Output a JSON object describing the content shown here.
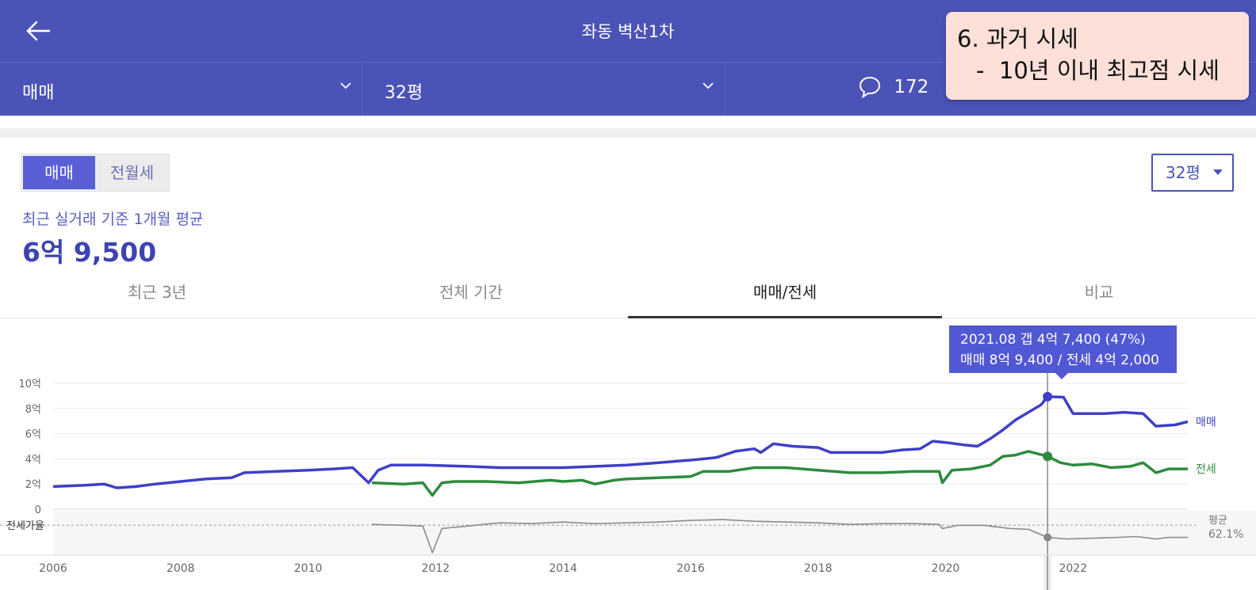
{
  "header": {
    "title": "좌동 벽산1차",
    "back_icon": "arrow-left-icon"
  },
  "filters": {
    "trade_type": "매매",
    "area": "32평",
    "comment_count": "172"
  },
  "callout": {
    "line1": "6. 과거 시세",
    "line2": "-  10년 이내 최고점 시세"
  },
  "segment": {
    "active": "매매",
    "inactive": "전월세"
  },
  "area_select": "32평",
  "summary": {
    "label": "최근 실거래 기준 1개월 평균",
    "value": "6억 9,500"
  },
  "tabs": [
    "최근 3년",
    "전체 기간",
    "매매/전세",
    "비교"
  ],
  "active_tab": 2,
  "tooltip": {
    "line1": "2021.08  갭 4억 7,400 (47%)",
    "line2": "매매 8억 9,400 / 전세 4억 2,000"
  },
  "ratio": {
    "label": "전세가율",
    "avg_label": "평균",
    "avg_value": "62.1%"
  },
  "colors": {
    "header_bg": "#4b53b7",
    "sale": "#3f3fc9",
    "jeonse": "#2e8b3e",
    "ratio": "#8c8c8c"
  },
  "chart_data": {
    "type": "line",
    "x_ticks": [
      "2006",
      "2008",
      "2010",
      "2012",
      "2014",
      "2016",
      "2018",
      "2020",
      "2022"
    ],
    "y_ticks": [
      "10억",
      "8억",
      "6억",
      "4억",
      "2억",
      "0"
    ],
    "ylim": [
      0,
      10
    ],
    "xlim": [
      2006.0,
      2023.8
    ],
    "unit": "억",
    "series": [
      {
        "name": "매매",
        "points": [
          [
            2006.0,
            1.8
          ],
          [
            2006.5,
            1.9
          ],
          [
            2006.8,
            2.0
          ],
          [
            2007.0,
            1.7
          ],
          [
            2007.3,
            1.8
          ],
          [
            2007.6,
            2.0
          ],
          [
            2008.0,
            2.2
          ],
          [
            2008.4,
            2.4
          ],
          [
            2008.8,
            2.5
          ],
          [
            2009.0,
            2.9
          ],
          [
            2009.5,
            3.0
          ],
          [
            2010.0,
            3.1
          ],
          [
            2010.4,
            3.2
          ],
          [
            2010.7,
            3.3
          ],
          [
            2010.95,
            2.1
          ],
          [
            2011.1,
            3.1
          ],
          [
            2011.3,
            3.5
          ],
          [
            2011.8,
            3.5
          ],
          [
            2012.5,
            3.4
          ],
          [
            2013.0,
            3.3
          ],
          [
            2013.5,
            3.3
          ],
          [
            2014.0,
            3.3
          ],
          [
            2014.5,
            3.4
          ],
          [
            2015.0,
            3.5
          ],
          [
            2015.5,
            3.7
          ],
          [
            2016.0,
            3.9
          ],
          [
            2016.4,
            4.1
          ],
          [
            2016.7,
            4.6
          ],
          [
            2017.0,
            4.8
          ],
          [
            2017.1,
            4.5
          ],
          [
            2017.3,
            5.2
          ],
          [
            2017.6,
            5.0
          ],
          [
            2018.0,
            4.9
          ],
          [
            2018.2,
            4.5
          ],
          [
            2018.6,
            4.5
          ],
          [
            2019.0,
            4.5
          ],
          [
            2019.3,
            4.7
          ],
          [
            2019.6,
            4.8
          ],
          [
            2019.8,
            5.4
          ],
          [
            2020.0,
            5.3
          ],
          [
            2020.3,
            5.1
          ],
          [
            2020.5,
            5.0
          ],
          [
            2020.7,
            5.6
          ],
          [
            2020.9,
            6.3
          ],
          [
            2021.1,
            7.1
          ],
          [
            2021.3,
            7.7
          ],
          [
            2021.5,
            8.3
          ],
          [
            2021.6,
            8.94
          ],
          [
            2021.85,
            8.9
          ],
          [
            2022.0,
            7.6
          ],
          [
            2022.5,
            7.6
          ],
          [
            2022.8,
            7.7
          ],
          [
            2023.1,
            7.6
          ],
          [
            2023.3,
            6.6
          ],
          [
            2023.6,
            6.7
          ],
          [
            2023.8,
            6.95
          ]
        ]
      },
      {
        "name": "전세",
        "points": [
          [
            2011.0,
            2.1
          ],
          [
            2011.5,
            2.0
          ],
          [
            2011.8,
            2.1
          ],
          [
            2011.95,
            1.1
          ],
          [
            2012.1,
            2.1
          ],
          [
            2012.3,
            2.2
          ],
          [
            2012.8,
            2.2
          ],
          [
            2013.3,
            2.1
          ],
          [
            2013.8,
            2.3
          ],
          [
            2014.0,
            2.2
          ],
          [
            2014.3,
            2.3
          ],
          [
            2014.5,
            2.0
          ],
          [
            2014.8,
            2.3
          ],
          [
            2015.0,
            2.4
          ],
          [
            2015.5,
            2.5
          ],
          [
            2016.0,
            2.6
          ],
          [
            2016.2,
            3.0
          ],
          [
            2016.6,
            3.0
          ],
          [
            2017.0,
            3.3
          ],
          [
            2017.5,
            3.3
          ],
          [
            2018.0,
            3.1
          ],
          [
            2018.5,
            2.9
          ],
          [
            2019.0,
            2.9
          ],
          [
            2019.5,
            3.0
          ],
          [
            2019.9,
            3.0
          ],
          [
            2019.95,
            2.1
          ],
          [
            2020.1,
            3.1
          ],
          [
            2020.4,
            3.2
          ],
          [
            2020.7,
            3.5
          ],
          [
            2020.9,
            4.2
          ],
          [
            2021.1,
            4.3
          ],
          [
            2021.3,
            4.6
          ],
          [
            2021.6,
            4.2
          ],
          [
            2021.8,
            3.7
          ],
          [
            2022.0,
            3.5
          ],
          [
            2022.3,
            3.6
          ],
          [
            2022.6,
            3.3
          ],
          [
            2022.9,
            3.4
          ],
          [
            2023.1,
            3.7
          ],
          [
            2023.3,
            2.9
          ],
          [
            2023.5,
            3.2
          ],
          [
            2023.8,
            3.2
          ]
        ]
      },
      {
        "name": "전세가율",
        "points": [
          [
            2011.0,
            63
          ],
          [
            2011.5,
            62
          ],
          [
            2011.8,
            61
          ],
          [
            2011.95,
            28
          ],
          [
            2012.1,
            58
          ],
          [
            2012.5,
            61
          ],
          [
            2013.0,
            65
          ],
          [
            2013.5,
            64
          ],
          [
            2014.0,
            66
          ],
          [
            2014.5,
            64
          ],
          [
            2015.0,
            65
          ],
          [
            2015.5,
            66
          ],
          [
            2016.0,
            68
          ],
          [
            2016.5,
            69
          ],
          [
            2017.0,
            67
          ],
          [
            2017.5,
            66
          ],
          [
            2018.0,
            65
          ],
          [
            2018.5,
            63
          ],
          [
            2019.0,
            64
          ],
          [
            2019.5,
            64
          ],
          [
            2019.9,
            63
          ],
          [
            2019.95,
            58
          ],
          [
            2020.2,
            62
          ],
          [
            2020.6,
            62
          ],
          [
            2021.0,
            58
          ],
          [
            2021.3,
            57
          ],
          [
            2021.6,
            47
          ],
          [
            2021.9,
            45
          ],
          [
            2022.3,
            46
          ],
          [
            2022.7,
            47
          ],
          [
            2023.0,
            48
          ],
          [
            2023.3,
            45
          ],
          [
            2023.5,
            47
          ],
          [
            2023.8,
            47
          ]
        ]
      }
    ],
    "ratio_avg": 62.1,
    "highlight": {
      "x": 2021.6,
      "sale": 8.94,
      "jeonse": 4.2
    }
  }
}
